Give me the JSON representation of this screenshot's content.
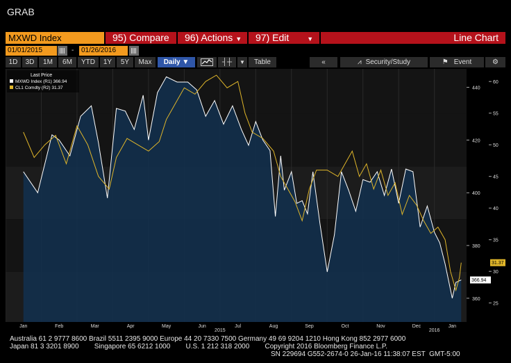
{
  "window": {
    "title": "GRAB"
  },
  "header": {
    "security": "MXWD Index",
    "compare": "95) Compare",
    "actions": "96) Actions",
    "edit": "97) Edit",
    "view_title": "Line Chart"
  },
  "dates": {
    "start": "01/01/2015",
    "separator": "-",
    "end": "01/26/2016"
  },
  "toolbar": {
    "periods": [
      "1D",
      "3D",
      "1M",
      "6M",
      "YTD",
      "1Y",
      "5Y",
      "Max"
    ],
    "frequency": "Daily ▼",
    "table": "Table",
    "security_study": "Security/Study",
    "event": "Event"
  },
  "legend": {
    "title": "Last Price",
    "items": [
      {
        "label": "MXWD Index  (R1) 366.94",
        "color": "#ffffff"
      },
      {
        "label": "CL1 Comdty  (R2)  31.37",
        "color": "#e0b62a"
      }
    ]
  },
  "chart_data": {
    "type": "line",
    "x_months": [
      "Jan",
      "Feb",
      "Mar",
      "Apr",
      "May",
      "Jun",
      "Jul",
      "Aug",
      "Sep",
      "Oct",
      "Nov",
      "Dec",
      "Jan"
    ],
    "x_years": [
      "2015",
      "2016"
    ],
    "axis_r1": {
      "ticks": [
        440,
        420,
        400,
        380,
        360
      ],
      "ylim": [
        351,
        447
      ]
    },
    "axis_r2": {
      "ticks": [
        60,
        55,
        50,
        45,
        40,
        35,
        30,
        25
      ],
      "ylim": [
        22,
        62
      ]
    },
    "last_value_labels": {
      "r1": "366.94",
      "r2": "31.37"
    },
    "series": [
      {
        "name": "MXWD Index",
        "axis": "R1",
        "fill": true,
        "x": [
          0,
          0.4,
          0.8,
          1,
          1.3,
          1.6,
          1.9,
          2.1,
          2.35,
          2.6,
          2.85,
          3.1,
          3.35,
          3.5,
          3.75,
          4,
          4.3,
          4.6,
          4.85,
          5.1,
          5.35,
          5.6,
          5.85,
          6.1,
          6.3,
          6.5,
          6.7,
          6.9,
          7.05,
          7.2,
          7.3,
          7.5,
          7.65,
          7.8,
          7.95,
          8.1,
          8.3,
          8.5,
          8.7,
          8.9,
          9.1,
          9.3,
          9.5,
          9.7,
          9.9,
          10.1,
          10.3,
          10.5,
          10.7,
          10.9,
          11.1,
          11.3,
          11.5,
          11.65,
          11.8,
          12,
          12.1,
          12.25
        ],
        "values": [
          408,
          400,
          422,
          420,
          414,
          429,
          433,
          419,
          398,
          432,
          431,
          424,
          437,
          420,
          438,
          444,
          442,
          442,
          439,
          429,
          435,
          426,
          433,
          424,
          418,
          427,
          420,
          416,
          391,
          414,
          401,
          408,
          396,
          397,
          392,
          408,
          388,
          370,
          384,
          408,
          401,
          393,
          405,
          404,
          408,
          399,
          409,
          396,
          409,
          408,
          387,
          395,
          385,
          381,
          373,
          360,
          366,
          366.94
        ]
      },
      {
        "name": "CL1 Comdty",
        "axis": "R2",
        "fill": false,
        "x": [
          0,
          0.3,
          0.6,
          0.9,
          1.2,
          1.5,
          1.8,
          2.1,
          2.4,
          2.6,
          2.9,
          3.2,
          3.5,
          3.8,
          4,
          4.2,
          4.5,
          4.8,
          5.1,
          5.4,
          5.7,
          6,
          6.2,
          6.4,
          6.7,
          7,
          7.2,
          7.4,
          7.6,
          7.8,
          8,
          8.2,
          8.5,
          8.8,
          9,
          9.2,
          9.4,
          9.6,
          9.8,
          10,
          10.2,
          10.4,
          10.6,
          10.8,
          11,
          11.2,
          11.4,
          11.6,
          11.8,
          11.95,
          12.1,
          12.2,
          12.25
        ],
        "values": [
          52,
          48,
          50,
          51.5,
          47,
          53,
          50,
          45,
          43,
          48,
          51,
          50,
          49,
          50.5,
          54,
          56,
          59,
          58,
          60,
          61,
          59,
          60,
          55,
          52,
          51,
          49,
          45,
          43,
          41,
          38,
          43,
          46,
          46,
          45,
          47,
          49,
          45,
          47,
          43,
          46,
          42,
          44,
          39,
          42,
          40.5,
          38,
          36,
          37,
          35,
          30,
          27,
          29,
          31.37
        ]
      }
    ]
  },
  "footer": {
    "line1": "Australia 61 2 9777 8600 Brazil 5511 2395 9000 Europe 44 20 7330 7500 Germany 49 69 9204 1210 Hong Kong 852 2977 6000",
    "line2": "Japan 81 3 3201 8900        Singapore 65 6212 1000        U.S. 1 212 318 2000        Copyright 2016 Bloomberg Finance L.P.",
    "line3": "SN 229694 G552-2674-0 26-Jan-16 11:38:07 EST  GMT-5:00"
  },
  "colors": {
    "accent_orange": "#f39a1e",
    "header_red": "#b5121b",
    "selected_blue": "#2f56a8",
    "oil_yellow": "#e0b62a",
    "area_fill": "#12304f"
  }
}
